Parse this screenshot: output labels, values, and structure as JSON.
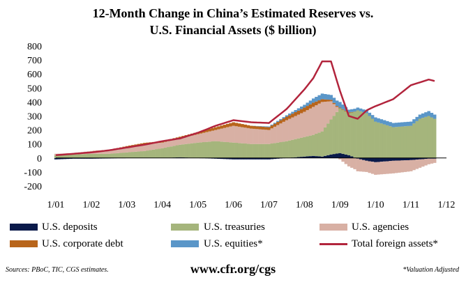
{
  "chart_data": {
    "type": "area",
    "title": "12-Month Change in China’s Estimated Reserves vs.",
    "subtitle": "U.S. Financial Assets ($ billion)",
    "xlabel": "",
    "ylabel": "",
    "ylim": [
      -200,
      800
    ],
    "yticks": [
      -200,
      -100,
      0,
      100,
      200,
      300,
      400,
      500,
      600,
      700,
      800
    ],
    "xticks": [
      "1/01",
      "1/02",
      "1/03",
      "1/04",
      "1/05",
      "1/06",
      "1/07",
      "1/08",
      "1/09",
      "1/10",
      "1/11",
      "1/12"
    ],
    "x_start": "2001-01",
    "x": [
      "2001-01",
      "2001-07",
      "2002-01",
      "2002-07",
      "2003-01",
      "2003-07",
      "2004-01",
      "2004-07",
      "2005-01",
      "2005-07",
      "2006-01",
      "2006-07",
      "2007-01",
      "2007-07",
      "2008-01",
      "2008-04",
      "2008-07",
      "2008-10",
      "2009-01",
      "2009-04",
      "2009-07",
      "2009-10",
      "2010-01",
      "2010-07",
      "2011-01",
      "2011-04",
      "2011-07",
      "2011-09"
    ],
    "series": [
      {
        "name": "U.S. deposits",
        "color": "#0a1a4a",
        "values": [
          -10,
          -5,
          -5,
          -3,
          0,
          0,
          0,
          5,
          0,
          -5,
          -10,
          -10,
          -10,
          0,
          10,
          15,
          10,
          25,
          35,
          20,
          -5,
          -20,
          -30,
          -20,
          -15,
          -10,
          -5,
          -5
        ]
      },
      {
        "name": "U.S. treasuries",
        "color": "#a5b57c",
        "values": [
          20,
          25,
          30,
          30,
          40,
          50,
          70,
          90,
          110,
          120,
          110,
          100,
          100,
          120,
          140,
          150,
          180,
          250,
          320,
          300,
          340,
          320,
          260,
          220,
          230,
          280,
          300,
          280
        ]
      },
      {
        "name": "U.S. agencies",
        "color": "#d8b0a4",
        "values": [
          10,
          10,
          20,
          25,
          40,
          50,
          40,
          45,
          60,
          80,
          120,
          110,
          100,
          150,
          180,
          200,
          210,
          130,
          -10,
          -60,
          -90,
          -80,
          -90,
          -90,
          -80,
          -60,
          -40,
          -30
        ]
      },
      {
        "name": "U.S. corporate debt",
        "color": "#b8651b",
        "values": [
          0,
          0,
          0,
          3,
          5,
          8,
          10,
          12,
          15,
          20,
          25,
          20,
          20,
          25,
          30,
          30,
          20,
          10,
          5,
          5,
          0,
          0,
          0,
          0,
          0,
          0,
          0,
          0
        ]
      },
      {
        "name": "U.S. equities*",
        "color": "#5a96c8",
        "values": [
          0,
          0,
          0,
          0,
          0,
          0,
          0,
          0,
          0,
          0,
          0,
          0,
          5,
          10,
          20,
          30,
          40,
          35,
          40,
          20,
          20,
          20,
          30,
          30,
          30,
          30,
          35,
          30
        ]
      },
      {
        "name": "Total foreign assets*",
        "color": "#b2243c",
        "type": "line",
        "values": [
          20,
          30,
          40,
          55,
          75,
          95,
          120,
          140,
          180,
          230,
          270,
          255,
          250,
          350,
          490,
          570,
          690,
          690,
          480,
          300,
          280,
          340,
          370,
          420,
          520,
          540,
          560,
          550
        ]
      }
    ]
  },
  "title_line1": "12-Month Change in China’s Estimated Reserves vs.",
  "title_line2": "U.S. Financial Assets ($ billion)",
  "legend": {
    "deposits": "U.S. deposits",
    "treasuries": "U.S. treasuries",
    "agencies": "U.S. agencies",
    "corporate": "U.S. corporate debt",
    "equities": "U.S. equities*",
    "total": "Total foreign assets*"
  },
  "footer": {
    "sources": "Sources: PBoC, TIC, CGS estimates.",
    "url": "www.cfr.org/cgs",
    "note": "*Valuation Adjusted"
  }
}
